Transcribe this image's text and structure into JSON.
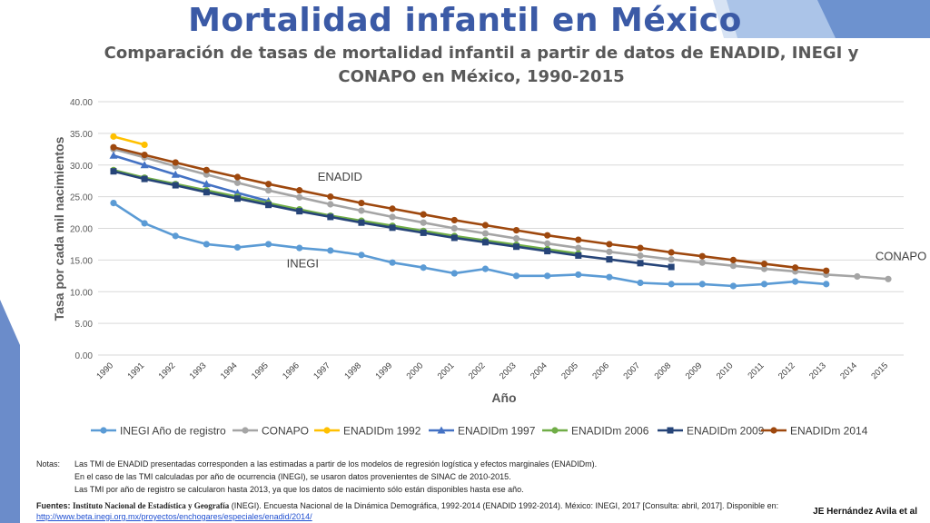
{
  "slide": {
    "title": "Mortalidad infantil en México",
    "author": "JE Hernández Avila et al"
  },
  "notes": {
    "label": "Notas:",
    "lines": [
      "Las TMI de ENADID presentadas corresponden a las estimadas a partir de los modelos de regresión logística y efectos marginales (ENADIDm).",
      "En el caso de las TMI calculadas por año de ocurrencia (INEGI), se usaron datos provenientes de SINAC de 2010-2015.",
      "Las TMI por año de registro se calcularon hasta 2013, ya que los datos de nacimiento sólo están disponibles hasta ese año."
    ]
  },
  "sources": {
    "label": "Fuentes:",
    "institution": "Instituto Nacional de Estadística y Geografía",
    "text": "(INEGI). Encuesta Nacional de la Dinámica Demográfica, 1992-2014 (ENADID 1992-2014). México: INEGI, 2017 [Consulta: abril, 2017]. Disponible en:",
    "url": "http://www.beta.inegi.org.mx/proyectos/enchogares/especiales/enadid/2014/"
  },
  "chart_data": {
    "type": "line",
    "title": "Comparación de tasas de mortalidad infantil a partir de datos de ENADID, INEGI y CONAPO en México, 1990-2015",
    "xlabel": "Año",
    "ylabel": "Tasa por cada mil nacimientos",
    "ylim": [
      0,
      40
    ],
    "yticks": [
      "0.00",
      "5.00",
      "10.00",
      "15.00",
      "20.00",
      "25.00",
      "30.00",
      "35.00",
      "40.00"
    ],
    "grid": true,
    "legend_position": "bottom",
    "x": [
      "1990",
      "1991",
      "1992",
      "1993",
      "1994",
      "1995",
      "1996",
      "1997",
      "1998",
      "1999",
      "2000",
      "2001",
      "2002",
      "2003",
      "2004",
      "2005",
      "2006",
      "2007",
      "2008",
      "2009",
      "2010",
      "2011",
      "2012",
      "2013",
      "2014",
      "2015"
    ],
    "annotations": [
      {
        "text": "ENADID",
        "x": "1996",
        "y": 27.5
      },
      {
        "text": "INEGI",
        "x": "1995",
        "y": 13.8
      },
      {
        "text": "CONAPO",
        "x": "2014",
        "y": 15.0
      }
    ],
    "series": [
      {
        "name": "INEGI Año de registro",
        "color": "#5b9bd5",
        "values": [
          24.0,
          20.8,
          18.8,
          17.5,
          17.0,
          17.5,
          16.9,
          16.5,
          15.8,
          14.6,
          13.8,
          12.9,
          13.6,
          12.5,
          12.5,
          12.7,
          12.3,
          11.4,
          11.2,
          11.2,
          10.9,
          11.2,
          11.6,
          11.2,
          null,
          null
        ]
      },
      {
        "name": "CONAPO",
        "color": "#a5a5a5",
        "values": [
          32.5,
          31.2,
          29.8,
          28.5,
          27.2,
          26.0,
          24.9,
          23.8,
          22.8,
          21.8,
          20.9,
          20.0,
          19.2,
          18.4,
          17.6,
          16.9,
          16.3,
          15.7,
          15.1,
          14.6,
          14.1,
          13.6,
          13.2,
          12.7,
          12.4,
          12.0
        ]
      },
      {
        "name": "ENADIDm 1992",
        "color": "#ffc000",
        "values": [
          34.5,
          33.2,
          null,
          null,
          null,
          null,
          null,
          null,
          null,
          null,
          null,
          null,
          null,
          null,
          null,
          null,
          null,
          null,
          null,
          null,
          null,
          null,
          null,
          null,
          null,
          null
        ]
      },
      {
        "name": "ENADIDm 1997",
        "color": "#4472c4",
        "values": [
          31.5,
          30.0,
          28.5,
          27.0,
          25.6,
          24.3,
          null,
          null,
          null,
          null,
          null,
          null,
          null,
          null,
          null,
          null,
          null,
          null,
          null,
          null,
          null,
          null,
          null,
          null,
          null,
          null
        ]
      },
      {
        "name": "ENADIDm 2006",
        "color": "#70ad47",
        "values": [
          29.2,
          28.0,
          27.0,
          26.0,
          25.0,
          24.0,
          23.0,
          22.0,
          21.2,
          20.4,
          19.6,
          18.8,
          18.1,
          17.4,
          16.7,
          16.0,
          null,
          null,
          null,
          null,
          null,
          null,
          null,
          null,
          null,
          null
        ]
      },
      {
        "name": "ENADIDm 2009",
        "color": "#264478",
        "values": [
          29.0,
          27.8,
          26.8,
          25.7,
          24.7,
          23.7,
          22.7,
          21.8,
          20.9,
          20.1,
          19.3,
          18.5,
          17.8,
          17.1,
          16.4,
          15.7,
          15.1,
          14.5,
          13.9,
          null,
          null,
          null,
          null,
          null,
          null,
          null
        ]
      },
      {
        "name": "ENADIDm 2014",
        "color": "#9e480e",
        "values": [
          32.8,
          31.6,
          30.4,
          29.2,
          28.1,
          27.0,
          26.0,
          25.0,
          24.0,
          23.1,
          22.2,
          21.3,
          20.5,
          19.7,
          18.9,
          18.2,
          17.5,
          16.9,
          16.2,
          15.6,
          15.0,
          14.4,
          13.8,
          13.3,
          null,
          null
        ]
      }
    ]
  }
}
